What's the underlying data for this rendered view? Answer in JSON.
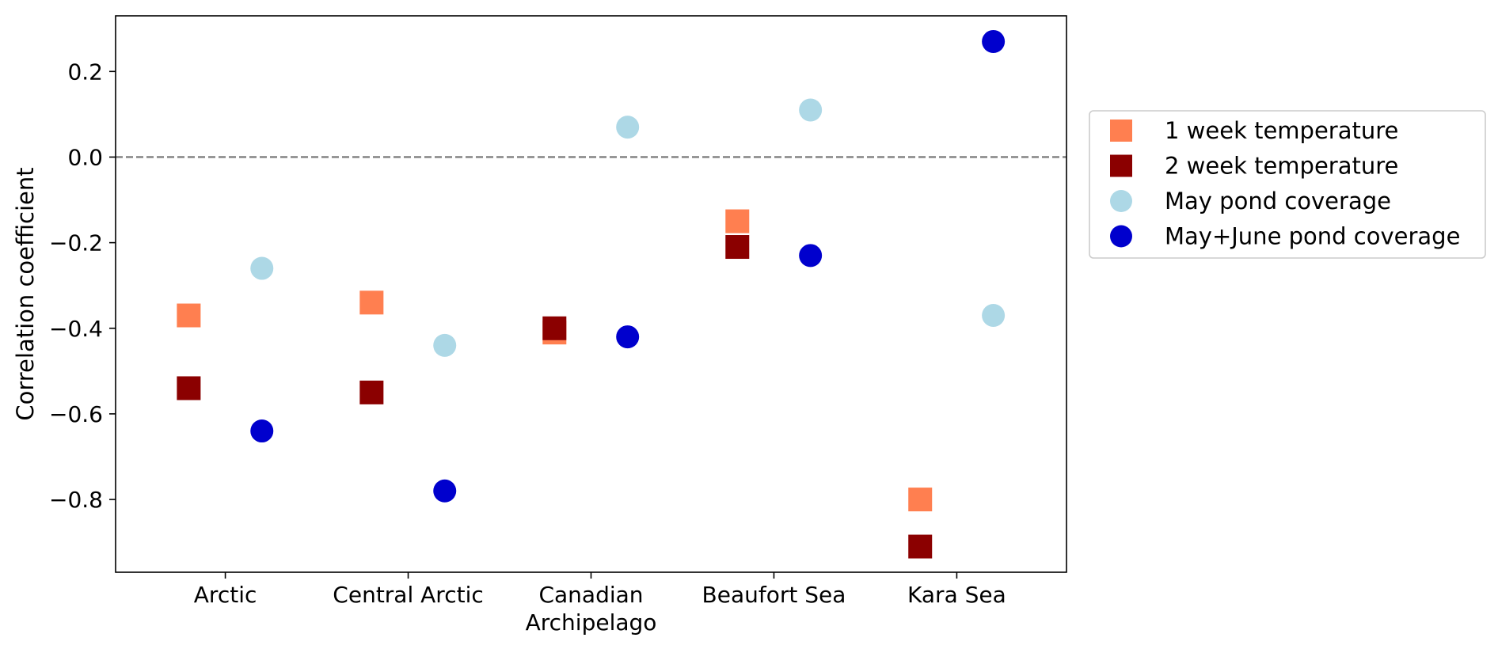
{
  "chart_data": {
    "type": "scatter",
    "title": "",
    "xlabel": "",
    "ylabel": "Correlation coefficient",
    "categories": [
      "Arctic",
      "Central Arctic",
      "Canadian\nArchipelago",
      "Beaufort Sea",
      "Kara Sea"
    ],
    "ylim": [
      -0.97,
      0.33
    ],
    "yticks": [
      0.2,
      0.0,
      -0.2,
      -0.4,
      -0.6,
      -0.8
    ],
    "ytick_labels": [
      "0.2",
      "0.0",
      "−0.2",
      "−0.4",
      "−0.6",
      "−0.8"
    ],
    "reference_line": {
      "y": 0.0,
      "style": "dashed",
      "color": "#7f7f7f"
    },
    "grid": false,
    "legend_position": "outside-right",
    "series": [
      {
        "name": "1 week temperature",
        "marker": "square",
        "color": "#ff7f50",
        "offset": -0.2,
        "values": [
          -0.37,
          -0.34,
          -0.41,
          -0.15,
          -0.8
        ]
      },
      {
        "name": "2 week temperature",
        "marker": "square",
        "color": "#8b0000",
        "offset": -0.2,
        "values": [
          -0.54,
          -0.55,
          -0.4,
          -0.21,
          -0.91
        ]
      },
      {
        "name": "May pond coverage",
        "marker": "circle",
        "color": "#add8e6",
        "offset": 0.2,
        "values": [
          -0.26,
          -0.44,
          0.07,
          0.11,
          -0.37
        ]
      },
      {
        "name": "May+June pond coverage",
        "marker": "circle",
        "color": "#0000cd",
        "offset": 0.2,
        "values": [
          -0.64,
          -0.78,
          -0.42,
          -0.23,
          0.27
        ]
      }
    ]
  }
}
